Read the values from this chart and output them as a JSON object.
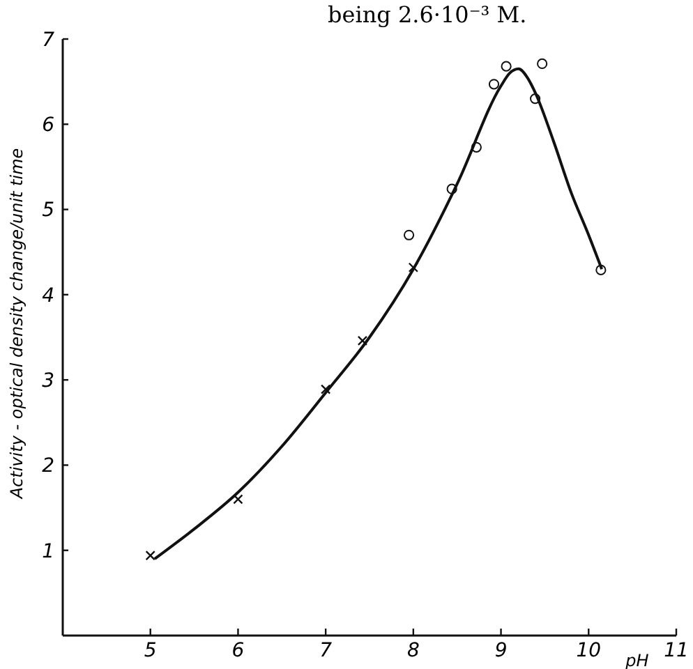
{
  "chart_data": {
    "type": "scatter",
    "annotations": [
      "being 2.6·10⁻³ M."
    ],
    "xlabel": "pH",
    "ylabel": "Activity - optical density change/unit time",
    "xlim": [
      4,
      11
    ],
    "ylim": [
      0,
      7
    ],
    "xticks": [
      5,
      6,
      7,
      8,
      9,
      10,
      11
    ],
    "yticks": [
      1,
      2,
      3,
      4,
      5,
      6,
      7
    ],
    "grid": false,
    "series": [
      {
        "marker": "cross",
        "color": "#111111",
        "x": [
          5,
          6,
          7,
          7.42,
          8
        ],
        "values": [
          0.94,
          1.6,
          2.89,
          3.46,
          4.32
        ]
      },
      {
        "marker": "circle",
        "color": "#111111",
        "x": [
          7.95,
          8.44,
          8.72,
          8.92,
          9.06,
          9.47,
          9.39,
          10.14
        ],
        "values": [
          4.7,
          5.24,
          5.73,
          6.47,
          6.68,
          6.71,
          6.3,
          4.29
        ]
      },
      {
        "type": "line",
        "line_style": "solid",
        "color": "#111111",
        "x": [
          5.05,
          5.5,
          6,
          6.5,
          7,
          7.5,
          8,
          8.5,
          9,
          9.1,
          9.2,
          9.3,
          9.4,
          9.6,
          9.8,
          10,
          10.15
        ],
        "values": [
          0.9,
          1.25,
          1.68,
          2.22,
          2.85,
          3.5,
          4.3,
          5.3,
          6.45,
          6.6,
          6.65,
          6.55,
          6.35,
          5.8,
          5.2,
          4.7,
          4.3
        ]
      }
    ]
  }
}
